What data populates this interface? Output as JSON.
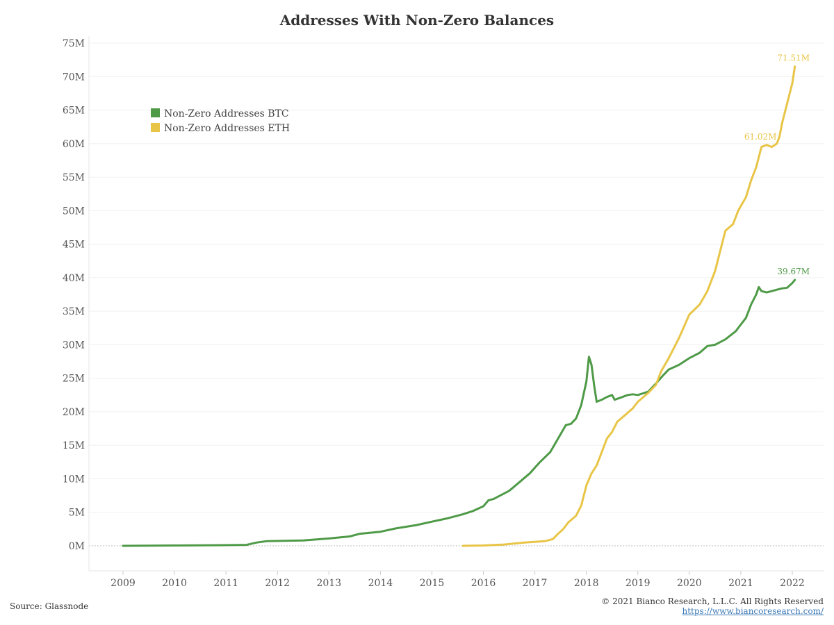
{
  "chart_data": {
    "type": "line",
    "title": "Addresses With Non-Zero Balances",
    "xlabel": "",
    "ylabel": "",
    "ylim": [
      0,
      75
    ],
    "xlim": [
      2008.7,
      2022.6
    ],
    "y_ticks": [
      {
        "value": 0,
        "label": "0M"
      },
      {
        "value": 5,
        "label": "5M"
      },
      {
        "value": 10,
        "label": "10M"
      },
      {
        "value": 15,
        "label": "15M"
      },
      {
        "value": 20,
        "label": "20M"
      },
      {
        "value": 25,
        "label": "25M"
      },
      {
        "value": 30,
        "label": "30M"
      },
      {
        "value": 35,
        "label": "35M"
      },
      {
        "value": 40,
        "label": "40M"
      },
      {
        "value": 45,
        "label": "45M"
      },
      {
        "value": 50,
        "label": "50M"
      },
      {
        "value": 55,
        "label": "55M"
      },
      {
        "value": 60,
        "label": "60M"
      },
      {
        "value": 65,
        "label": "65M"
      },
      {
        "value": 70,
        "label": "70M"
      },
      {
        "value": 75,
        "label": "75M"
      }
    ],
    "x_ticks": [
      {
        "value": 2009,
        "label": "2009"
      },
      {
        "value": 2010,
        "label": "2010"
      },
      {
        "value": 2011,
        "label": "2011"
      },
      {
        "value": 2012,
        "label": "2012"
      },
      {
        "value": 2013,
        "label": "2013"
      },
      {
        "value": 2014,
        "label": "2014"
      },
      {
        "value": 2015,
        "label": "2015"
      },
      {
        "value": 2016,
        "label": "2016"
      },
      {
        "value": 2017,
        "label": "2017"
      },
      {
        "value": 2018,
        "label": "2018"
      },
      {
        "value": 2019,
        "label": "2019"
      },
      {
        "value": 2020,
        "label": "2020"
      },
      {
        "value": 2021,
        "label": "2021"
      },
      {
        "value": 2022,
        "label": "2022"
      }
    ],
    "grid": true,
    "legend_position": "top-left",
    "series": [
      {
        "name": "Non-Zero Addresses BTC",
        "color": "#4e9a47",
        "points": [
          [
            2009.0,
            0.0
          ],
          [
            2010.0,
            0.05
          ],
          [
            2011.0,
            0.1
          ],
          [
            2011.4,
            0.15
          ],
          [
            2011.6,
            0.5
          ],
          [
            2011.8,
            0.7
          ],
          [
            2012.5,
            0.8
          ],
          [
            2013.0,
            1.1
          ],
          [
            2013.4,
            1.4
          ],
          [
            2013.6,
            1.8
          ],
          [
            2014.0,
            2.1
          ],
          [
            2014.3,
            2.6
          ],
          [
            2014.7,
            3.1
          ],
          [
            2015.0,
            3.6
          ],
          [
            2015.3,
            4.1
          ],
          [
            2015.6,
            4.7
          ],
          [
            2015.8,
            5.2
          ],
          [
            2016.0,
            5.9
          ],
          [
            2016.1,
            6.8
          ],
          [
            2016.2,
            7.0
          ],
          [
            2016.3,
            7.4
          ],
          [
            2016.5,
            8.2
          ],
          [
            2016.7,
            9.5
          ],
          [
            2016.9,
            10.8
          ],
          [
            2017.1,
            12.5
          ],
          [
            2017.3,
            14.0
          ],
          [
            2017.45,
            16.0
          ],
          [
            2017.6,
            18.0
          ],
          [
            2017.7,
            18.2
          ],
          [
            2017.8,
            19.0
          ],
          [
            2017.9,
            21.0
          ],
          [
            2018.0,
            24.5
          ],
          [
            2018.05,
            28.2
          ],
          [
            2018.1,
            27.0
          ],
          [
            2018.15,
            24.0
          ],
          [
            2018.2,
            21.5
          ],
          [
            2018.3,
            21.8
          ],
          [
            2018.4,
            22.2
          ],
          [
            2018.5,
            22.5
          ],
          [
            2018.55,
            21.8
          ],
          [
            2018.7,
            22.2
          ],
          [
            2018.8,
            22.5
          ],
          [
            2018.9,
            22.6
          ],
          [
            2019.0,
            22.5
          ],
          [
            2019.2,
            23.0
          ],
          [
            2019.35,
            24.2
          ],
          [
            2019.5,
            25.5
          ],
          [
            2019.6,
            26.3
          ],
          [
            2019.8,
            27.0
          ],
          [
            2020.0,
            28.0
          ],
          [
            2020.2,
            28.8
          ],
          [
            2020.35,
            29.8
          ],
          [
            2020.5,
            30.0
          ],
          [
            2020.7,
            30.8
          ],
          [
            2020.9,
            32.0
          ],
          [
            2021.0,
            33.0
          ],
          [
            2021.1,
            34.0
          ],
          [
            2021.2,
            36.0
          ],
          [
            2021.3,
            37.5
          ],
          [
            2021.35,
            38.6
          ],
          [
            2021.4,
            38.0
          ],
          [
            2021.5,
            37.8
          ],
          [
            2021.6,
            38.0
          ],
          [
            2021.7,
            38.2
          ],
          [
            2021.8,
            38.4
          ],
          [
            2021.9,
            38.5
          ],
          [
            2022.0,
            39.2
          ],
          [
            2022.05,
            39.67
          ]
        ],
        "end_label": "39.67M"
      },
      {
        "name": "Non-Zero Addresses ETH",
        "color": "#e8c547",
        "points": [
          [
            2015.6,
            0.0
          ],
          [
            2016.0,
            0.05
          ],
          [
            2016.4,
            0.2
          ],
          [
            2016.8,
            0.5
          ],
          [
            2017.0,
            0.6
          ],
          [
            2017.2,
            0.7
          ],
          [
            2017.35,
            1.0
          ],
          [
            2017.45,
            1.8
          ],
          [
            2017.55,
            2.5
          ],
          [
            2017.65,
            3.5
          ],
          [
            2017.8,
            4.5
          ],
          [
            2017.9,
            6.0
          ],
          [
            2018.0,
            9.0
          ],
          [
            2018.1,
            10.8
          ],
          [
            2018.2,
            12.0
          ],
          [
            2018.3,
            14.0
          ],
          [
            2018.4,
            16.0
          ],
          [
            2018.5,
            17.0
          ],
          [
            2018.6,
            18.5
          ],
          [
            2018.75,
            19.5
          ],
          [
            2018.9,
            20.5
          ],
          [
            2019.0,
            21.5
          ],
          [
            2019.2,
            22.8
          ],
          [
            2019.35,
            24.0
          ],
          [
            2019.45,
            26.0
          ],
          [
            2019.6,
            28.0
          ],
          [
            2019.8,
            31.0
          ],
          [
            2020.0,
            34.5
          ],
          [
            2020.2,
            36.0
          ],
          [
            2020.35,
            38.0
          ],
          [
            2020.5,
            41.0
          ],
          [
            2020.6,
            44.0
          ],
          [
            2020.7,
            47.0
          ],
          [
            2020.85,
            48.0
          ],
          [
            2020.95,
            50.0
          ],
          [
            2021.1,
            52.0
          ],
          [
            2021.2,
            54.5
          ],
          [
            2021.3,
            56.5
          ],
          [
            2021.4,
            59.5
          ],
          [
            2021.5,
            59.8
          ],
          [
            2021.6,
            59.5
          ],
          [
            2021.7,
            60.0
          ],
          [
            2021.75,
            61.02
          ],
          [
            2021.8,
            63.0
          ],
          [
            2021.9,
            66.0
          ],
          [
            2022.0,
            69.0
          ],
          [
            2022.05,
            71.51
          ]
        ],
        "end_label": "71.51M",
        "mid_label": {
          "x": 2021.75,
          "y": 61.02,
          "text": "61.02M"
        }
      }
    ]
  },
  "footer": {
    "source": "Source: Glassnode",
    "copyright": "© 2021 Bianco Research, L.L.C. All Rights Reserved",
    "url": "https://www.biancoresearch.com/"
  }
}
